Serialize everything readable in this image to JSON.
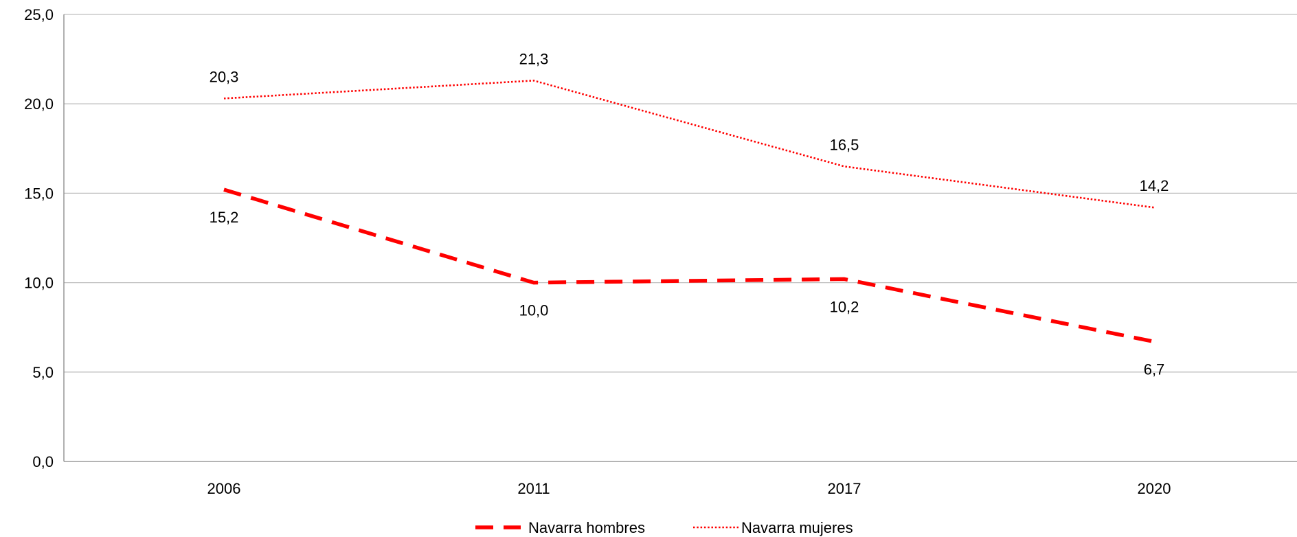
{
  "chart_data": {
    "type": "line",
    "title": "",
    "xlabel": "",
    "ylabel": "",
    "categories": [
      "2006",
      "2011",
      "2017",
      "2020"
    ],
    "ylim": [
      0,
      25
    ],
    "yticks": [
      0,
      5,
      10,
      15,
      20,
      25
    ],
    "ytick_labels": [
      "0,0",
      "5,0",
      "10,0",
      "15,0",
      "20,0",
      "25,0"
    ],
    "grid": "horizontal",
    "legend_position": "bottom-center",
    "series": [
      {
        "name": "Navarra hombres",
        "values": [
          15.2,
          10.0,
          10.2,
          6.7
        ],
        "labels": [
          "15,2",
          "10,0",
          "10,2",
          "6,7"
        ],
        "label_position": "below",
        "color": "#ff0000",
        "line_style": "dashed"
      },
      {
        "name": "Navarra mujeres",
        "values": [
          20.3,
          21.3,
          16.5,
          14.2
        ],
        "labels": [
          "20,3",
          "21,3",
          "16,5",
          "14,2"
        ],
        "label_position": "above",
        "color": "#ff0000",
        "line_style": "dotted"
      }
    ],
    "colors": {
      "grid": "#bfbfbf",
      "axis": "#868686"
    }
  }
}
